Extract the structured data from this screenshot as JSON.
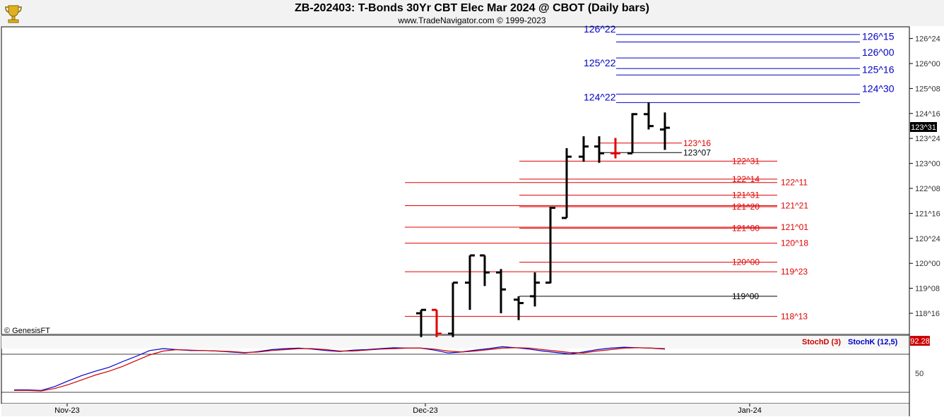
{
  "header": {
    "title": "ZB-202403:  T-Bonds 30Yr CBT Elec Mar 2024 @ CBOT  (Daily bars)",
    "subtitle": "www.TradeNavigator.com © 1999-2023",
    "logo_icon": "trophy-icon"
  },
  "colors": {
    "bar": "#000000",
    "highlight_bar": "#e00000",
    "blue_levels": "#0000c8",
    "red_levels": "#e00000",
    "black_levels": "#000000",
    "stoch_d": "#cc0000",
    "stoch_k": "#0000cc",
    "current_price_bg": "#000000",
    "stoch_value_bg": "#cc0000"
  },
  "chart_data": [
    {
      "type": "bar",
      "subtype": "ohlc",
      "title": "ZB-202403:  T-Bonds 30Yr CBT Elec Mar 2024 @ CBOT  (Daily bars)",
      "y_unit": "32nds of a point",
      "y_ticks": [
        "118^16",
        "119^08",
        "120^00",
        "120^24",
        "121^16",
        "122^08",
        "123^00",
        "123^24",
        "124^16",
        "125^08",
        "126^00",
        "126^24"
      ],
      "ylim": [
        118.0,
        126.9
      ],
      "x_ticks": [
        "Nov-23",
        "Dec-23",
        "Jan-24"
      ],
      "current_price_label": "123^31",
      "watermark": "© GenesisFT",
      "bars": [
        {
          "o": 118.5,
          "h": 118.6,
          "l": 117.8,
          "c": 118.6,
          "color": "black"
        },
        {
          "o": 118.6,
          "h": 118.6,
          "l": 117.8,
          "c": 117.9,
          "color": "red"
        },
        {
          "o": 117.9,
          "h": 119.4,
          "l": 117.8,
          "c": 119.4,
          "color": "black"
        },
        {
          "o": 119.4,
          "h": 120.2,
          "l": 118.6,
          "c": 120.2,
          "color": "black"
        },
        {
          "o": 120.2,
          "h": 120.2,
          "l": 119.3,
          "c": 119.7,
          "color": "black"
        },
        {
          "o": 119.7,
          "h": 119.8,
          "l": 118.5,
          "c": 119.2,
          "color": "black"
        },
        {
          "o": 118.9,
          "h": 119.0,
          "l": 118.3,
          "c": 118.8,
          "color": "black"
        },
        {
          "o": 119.0,
          "h": 119.7,
          "l": 118.7,
          "c": 119.4,
          "color": "black"
        },
        {
          "o": 119.4,
          "h": 121.63,
          "l": 119.38,
          "c": 121.6,
          "color": "black"
        },
        {
          "o": 121.3,
          "h": 123.35,
          "l": 121.3,
          "c": 123.1,
          "color": "black"
        },
        {
          "o": 123.1,
          "h": 123.7,
          "l": 122.95,
          "c": 123.4,
          "color": "black"
        },
        {
          "o": 123.4,
          "h": 123.7,
          "l": 122.92,
          "c": 123.2,
          "color": "black"
        },
        {
          "o": 123.2,
          "h": 123.65,
          "l": 123.05,
          "c": 123.2,
          "color": "red"
        },
        {
          "o": 123.2,
          "h": 124.38,
          "l": 123.2,
          "c": 124.35,
          "color": "black"
        },
        {
          "o": 124.35,
          "h": 124.7,
          "l": 123.9,
          "c": 124.0,
          "color": "black"
        },
        {
          "o": 123.9,
          "h": 124.4,
          "l": 123.3,
          "c": 123.95,
          "color": "black"
        }
      ],
      "levels": [
        {
          "label": "126^22",
          "value": 126.69,
          "color": "blue",
          "label_side": "left"
        },
        {
          "label": "126^15",
          "value": 126.47,
          "color": "blue",
          "label_side": "right"
        },
        {
          "label": "126^00",
          "value": 126.0,
          "color": "blue",
          "label_side": "right"
        },
        {
          "label": "125^22",
          "value": 125.69,
          "color": "blue",
          "label_side": "left"
        },
        {
          "label": "125^16",
          "value": 125.5,
          "color": "blue",
          "label_side": "right"
        },
        {
          "label": "124^30",
          "value": 124.94,
          "color": "blue",
          "label_side": "right"
        },
        {
          "label": "124^22",
          "value": 124.69,
          "color": "blue",
          "label_side": "left"
        },
        {
          "label": "123^16",
          "value": 123.5,
          "color": "red",
          "label_side": "right"
        },
        {
          "label": "123^07",
          "value": 123.22,
          "color": "black",
          "label_side": "right"
        },
        {
          "label": "122^31",
          "value": 122.97,
          "color": "red",
          "label_side": "right"
        },
        {
          "label": "122^14",
          "value": 122.44,
          "color": "red",
          "label_side": "right"
        },
        {
          "label": "122^11",
          "value": 122.34,
          "color": "red",
          "label_side": "right"
        },
        {
          "label": "121^31",
          "value": 121.97,
          "color": "red",
          "label_side": "right"
        },
        {
          "label": "121^20",
          "value": 121.63,
          "color": "red",
          "label_side": "right"
        },
        {
          "label": "121^21",
          "value": 121.66,
          "color": "red",
          "label_side": "right"
        },
        {
          "label": "121^00",
          "value": 121.0,
          "color": "red",
          "label_side": "right"
        },
        {
          "label": "121^01",
          "value": 121.03,
          "color": "red",
          "label_side": "right"
        },
        {
          "label": "120^18",
          "value": 120.56,
          "color": "red",
          "label_side": "right"
        },
        {
          "label": "120^00",
          "value": 120.0,
          "color": "red",
          "label_side": "right"
        },
        {
          "label": "119^23",
          "value": 119.72,
          "color": "red",
          "label_side": "right"
        },
        {
          "label": "119^00",
          "value": 119.0,
          "color": "black",
          "label_side": "right"
        },
        {
          "label": "118^13",
          "value": 118.41,
          "color": "red",
          "label_side": "right"
        }
      ]
    },
    {
      "type": "line",
      "title": "",
      "legend": [
        "StochD (3)",
        "StochK (12,5)"
      ],
      "current_value_label": "92.28",
      "y_ticks": [
        "50"
      ],
      "ylim": [
        0,
        100
      ],
      "series": [
        {
          "name": "StochK (12,5)",
          "color": "blue",
          "values": [
            5,
            5,
            4,
            12,
            24,
            35,
            44,
            52,
            64,
            75,
            87,
            91,
            89,
            87,
            87,
            86,
            84,
            82,
            85,
            89,
            91,
            92,
            90,
            87,
            85,
            88,
            89,
            91,
            93,
            92,
            92,
            88,
            82,
            84,
            88,
            91,
            95,
            93,
            90,
            86,
            83,
            80,
            84,
            89,
            92,
            94,
            93,
            92,
            90
          ]
        },
        {
          "name": "StochD (3)",
          "color": "red",
          "values": [
            4,
            4,
            3,
            8,
            16,
            26,
            36,
            44,
            54,
            66,
            78,
            86,
            89,
            88,
            87,
            86,
            85,
            83,
            84,
            87,
            89,
            91,
            91,
            89,
            86,
            86,
            88,
            90,
            91,
            92,
            92,
            90,
            86,
            84,
            86,
            89,
            92,
            93,
            92,
            89,
            86,
            83,
            82,
            86,
            89,
            92,
            93,
            92,
            91
          ]
        }
      ]
    }
  ]
}
